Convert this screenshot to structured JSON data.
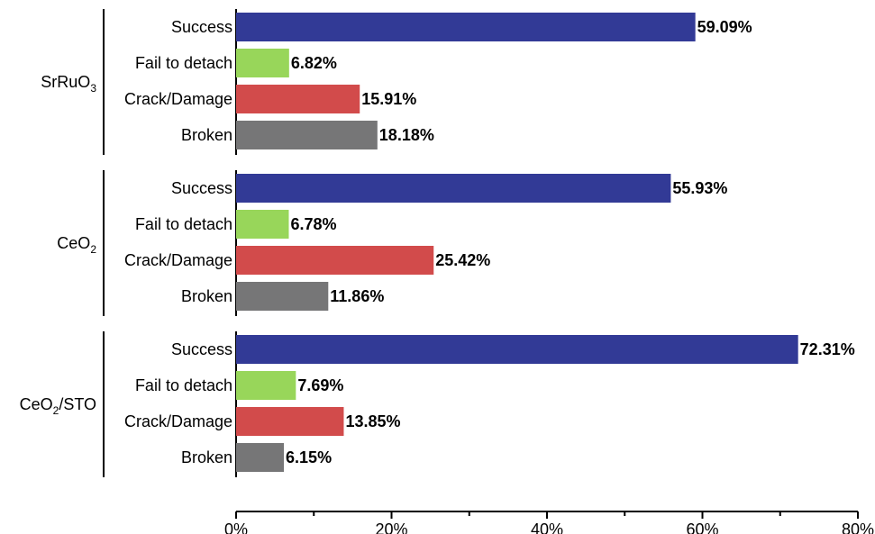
{
  "chart_data": {
    "type": "bar",
    "orientation": "horizontal",
    "xlim": [
      0,
      80
    ],
    "x_ticks": [
      "0%",
      "20%",
      "40%",
      "60%",
      "80%"
    ],
    "categories": [
      "Success",
      "Fail to detach",
      "Crack/Damage",
      "Broken"
    ],
    "colors": {
      "Success": "#323a96",
      "Fail to detach": "#98d65a",
      "Crack/Damage": "#d24b4b",
      "Broken": "#767677"
    },
    "groups": [
      {
        "label": "SrRuO",
        "subscript": "3",
        "label_tail": "",
        "values": [
          59.09,
          6.82,
          15.91,
          18.18
        ],
        "value_labels": [
          "59.09%",
          "6.82%",
          "15.91%",
          "18.18%"
        ]
      },
      {
        "label": "CeO",
        "subscript": "2",
        "label_tail": "",
        "values": [
          55.93,
          6.78,
          25.42,
          11.86
        ],
        "value_labels": [
          "55.93%",
          "6.78%",
          "25.42%",
          "11.86%"
        ]
      },
      {
        "label": "CeO",
        "subscript": "2",
        "label_tail": "/STO",
        "values": [
          72.31,
          7.69,
          13.85,
          6.15
        ],
        "value_labels": [
          "72.31%",
          "7.69%",
          "13.85%",
          "6.15%"
        ]
      }
    ],
    "grid": false,
    "legend": "none"
  }
}
